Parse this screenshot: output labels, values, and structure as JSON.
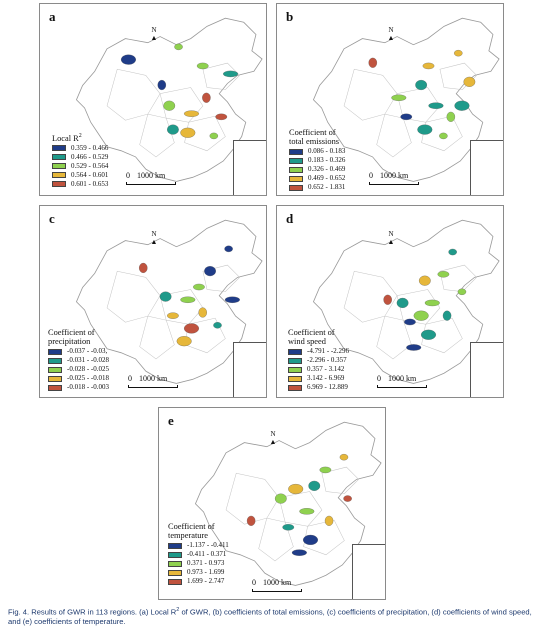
{
  "colors": {
    "class1": "#1f3c88",
    "class2": "#1f9a8a",
    "class3": "#8fd14f",
    "class4": "#e6b73a",
    "class5": "#c0533e",
    "outline": "#9a9a9a"
  },
  "panels": [
    {
      "label": "a",
      "legend_title_1": "Local R",
      "legend_title_sup": "2",
      "legend_title_2": "",
      "classes": [
        "0.359 - 0.466",
        "0.466 - 0.529",
        "0.529 - 0.564",
        "0.564 - 0.601",
        "0.601 - 0.653"
      ],
      "north": "N",
      "scale_zero": "0",
      "scale_label": "1000 km"
    },
    {
      "label": "b",
      "legend_title_1": "Coefficient of",
      "legend_title_sup": "",
      "legend_title_2": "total emissions",
      "classes": [
        "0.086 - 0.183",
        "0.183 - 0.326",
        "0.326 - 0.469",
        "0.469 - 0.652",
        "0.652 - 1.831"
      ],
      "north": "N",
      "scale_zero": "0",
      "scale_label": "1000 km"
    },
    {
      "label": "c",
      "legend_title_1": "Coefficient of",
      "legend_title_sup": "",
      "legend_title_2": "precipitation",
      "classes": [
        "-0.037 - -0.03,",
        "-0.031 - -0.028",
        "-0.028 - -0.025",
        "-0.025 - -0.018",
        "-0.018 - -0.003"
      ],
      "north": "N",
      "scale_zero": "0",
      "scale_label": "1000 km"
    },
    {
      "label": "d",
      "legend_title_1": "Coefficient of",
      "legend_title_sup": "",
      "legend_title_2": "wind speed",
      "classes": [
        "-4.791 - -2.296",
        "-2.296 - 0.357",
        "0.357 - 3.142",
        "3.142 - 6.969",
        "6.969 - 12.889"
      ],
      "north": "N",
      "scale_zero": "0",
      "scale_label": "1000 km"
    },
    {
      "label": "e",
      "legend_title_1": "Coefficient of",
      "legend_title_sup": "",
      "legend_title_2": "temperature",
      "classes": [
        "-1.137 - -0.411",
        "-0.411 - 0.371",
        "0.371 - 0.973",
        "0.973 - 1.699",
        "1.699 - 2.747"
      ],
      "north": "N",
      "scale_zero": "0",
      "scale_label": "1000 km"
    }
  ],
  "caption": {
    "prefix": "Fig. 4. Results of GWR in 113 regions. (a) Local R",
    "sup": "2",
    "rest": " of GWR, (b) coefficients of total emissions, (c) coefficients of precipitation, (d) coefficients of wind speed, and (e) coefficients of temperature."
  }
}
